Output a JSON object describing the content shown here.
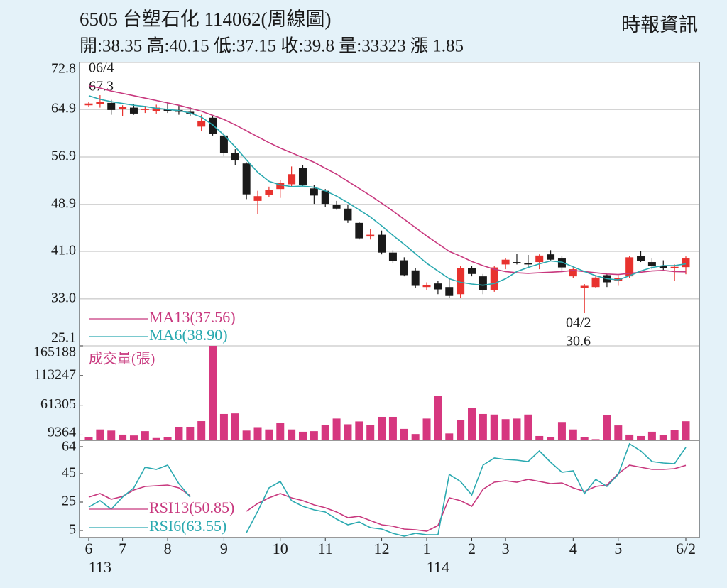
{
  "chart_data": [
    {
      "type": "candlestick",
      "title": "6505  台塑石化 114062(周線圖)",
      "subtitle": "開:38.35 高:40.15 低:37.15 收:39.8 量:33323 漲 1.85",
      "source": "時報資訊",
      "open": [
        65.6,
        65.8,
        66.0,
        65.0,
        65.2,
        64.8,
        64.6,
        65.0,
        64.8,
        64.5,
        62.0,
        63.5,
        60.5,
        57.5,
        55.8,
        49.5,
        50.5,
        51.5,
        52.3,
        55.0,
        51.6,
        51.2,
        48.8,
        48.2,
        45.8,
        43.5,
        43.8,
        40.8,
        39.5,
        37.8,
        35.0,
        35.6,
        35.0,
        33.8,
        38.2,
        36.8,
        34.5,
        38.8,
        39.2,
        39.0,
        39.2,
        40.5,
        39.8,
        36.8,
        34.8,
        35.0,
        37.0,
        36.0,
        36.8,
        40.2,
        39.2,
        38.6,
        38.3,
        38.35
      ],
      "high": [
        66.2,
        67.3,
        66.5,
        65.6,
        65.8,
        65.5,
        65.7,
        66.0,
        65.5,
        65.3,
        64.0,
        63.8,
        61.0,
        58.2,
        56.0,
        51.2,
        51.9,
        53.0,
        55.3,
        55.5,
        52.2,
        51.5,
        49.5,
        48.9,
        46.0,
        44.8,
        44.5,
        41.2,
        40.0,
        38.2,
        35.8,
        36.0,
        36.5,
        38.5,
        38.5,
        37.2,
        38.5,
        39.8,
        40.6,
        40.4,
        40.5,
        41.2,
        40.2,
        38.3,
        35.5,
        37.0,
        37.2,
        37.0,
        40.2,
        41.0,
        39.8,
        39.5,
        38.8,
        40.15
      ],
      "low": [
        65.3,
        65.2,
        64.0,
        63.8,
        64.0,
        64.3,
        64.2,
        64.3,
        64.0,
        63.8,
        61.2,
        60.5,
        57.0,
        55.5,
        49.8,
        47.3,
        50.1,
        50.0,
        51.8,
        52.0,
        49.0,
        48.5,
        48.0,
        45.8,
        43.0,
        43.0,
        40.5,
        39.0,
        36.8,
        34.8,
        34.5,
        33.8,
        33.2,
        33.2,
        36.8,
        33.8,
        34.2,
        38.0,
        38.8,
        38.2,
        38.0,
        39.5,
        37.8,
        36.5,
        30.6,
        34.8,
        35.0,
        35.2,
        36.5,
        39.2,
        38.0,
        37.8,
        36.0,
        37.15
      ],
      "close": [
        65.9,
        66.2,
        64.8,
        65.3,
        64.2,
        65.0,
        65.2,
        64.6,
        64.5,
        64.2,
        63.0,
        60.8,
        57.5,
        56.3,
        50.6,
        50.3,
        51.4,
        52.5,
        54.0,
        52.2,
        50.4,
        49.0,
        48.2,
        46.2,
        43.2,
        43.8,
        40.8,
        39.4,
        37.0,
        35.2,
        35.3,
        34.6,
        33.5,
        38.2,
        37.2,
        34.5,
        38.3,
        39.6,
        39.0,
        38.8,
        40.3,
        39.6,
        38.3,
        38.0,
        35.2,
        36.6,
        35.8,
        36.5,
        40.0,
        39.4,
        38.6,
        38.2,
        38.4,
        39.8
      ],
      "up_color": "#e8322e",
      "down_color": "#1a1a1a",
      "series": [
        {
          "name": "MA13(37.56)",
          "color": "#c8387e",
          "values": [
            68.9,
            68.5,
            68.0,
            67.6,
            67.2,
            66.8,
            66.4,
            66.0,
            65.6,
            65.1,
            64.6,
            63.9,
            63.2,
            62.3,
            61.3,
            60.3,
            59.3,
            58.4,
            57.6,
            56.8,
            56.0,
            55.0,
            54.0,
            52.8,
            51.6,
            50.4,
            49.1,
            47.8,
            46.4,
            45.0,
            43.6,
            42.3,
            41.0,
            40.2,
            39.3,
            38.6,
            38.0,
            37.6,
            37.4,
            37.3,
            37.4,
            37.5,
            37.6,
            37.8,
            37.6,
            37.4,
            37.2,
            37.1,
            37.3,
            37.5,
            37.7,
            37.8,
            37.6,
            37.56
          ]
        },
        {
          "name": "MA6(38.90)",
          "color": "#2aa9b0",
          "values": [
            67.2,
            66.6,
            66.2,
            65.9,
            65.6,
            65.4,
            65.1,
            64.9,
            64.7,
            64.3,
            63.6,
            62.3,
            60.6,
            58.6,
            56.4,
            54.3,
            52.8,
            52.2,
            51.9,
            52.0,
            51.8,
            51.2,
            50.3,
            49.2,
            48.0,
            46.8,
            45.3,
            43.7,
            42.2,
            40.6,
            39.0,
            37.7,
            36.4,
            35.8,
            35.5,
            35.3,
            35.6,
            36.4,
            37.6,
            38.3,
            38.9,
            39.4,
            39.2,
            38.4,
            37.6,
            36.9,
            36.4,
            36.2,
            36.9,
            37.7,
            38.3,
            38.6,
            38.6,
            38.9
          ]
        }
      ],
      "annotations": [
        {
          "date": "06/4",
          "value": 67.3
        },
        {
          "date": "04/2",
          "value": 30.6
        }
      ],
      "ylim": [
        25.1,
        72.8
      ],
      "yticks": [
        72.8,
        64.9,
        56.9,
        48.9,
        {
          "value": 41,
          "label": "41.0"
        },
        {
          "value": 33,
          "label": "33.0"
        },
        25.1
      ],
      "grid": true
    },
    {
      "type": "bar",
      "label": "成交量(張)",
      "color": "#d6377f",
      "values": [
        5000,
        19000,
        17000,
        10000,
        8500,
        16000,
        4000,
        6000,
        23600,
        23600,
        33500,
        165188,
        46000,
        47000,
        17000,
        23000,
        19000,
        30000,
        19000,
        15000,
        16000,
        27000,
        38000,
        28000,
        33000,
        27000,
        41000,
        41000,
        20000,
        11000,
        38000,
        77000,
        12000,
        36000,
        57000,
        46000,
        45000,
        37000,
        38000,
        45000,
        7500,
        5000,
        32000,
        19000,
        6000,
        2000,
        44000,
        26000,
        10000,
        7500,
        15000,
        9000,
        18000,
        33323
      ],
      "ylim": [
        0,
        165188
      ],
      "yticks": [
        165188,
        113247,
        61305,
        9364
      ]
    },
    {
      "type": "line",
      "categories": [
        "6",
        null,
        null,
        "7",
        null,
        null,
        null,
        "8",
        null,
        null,
        null,
        null,
        "9",
        null,
        null,
        null,
        null,
        "10",
        null,
        null,
        null,
        "11",
        null,
        null,
        null,
        null,
        "12",
        null,
        null,
        null,
        "1",
        null,
        null,
        null,
        "2",
        null,
        null,
        "3",
        null,
        null,
        null,
        null,
        null,
        "4",
        null,
        null,
        null,
        "5",
        null,
        null,
        null,
        null,
        null,
        "6/2"
      ],
      "year_labels": [
        null,
        "113",
        null,
        null,
        null,
        null,
        null,
        null,
        null,
        null,
        null,
        null,
        null,
        null,
        null,
        null,
        null,
        null,
        null,
        null,
        null,
        null,
        null,
        null,
        null,
        null,
        null,
        null,
        null,
        null,
        null,
        "114",
        null,
        null,
        null,
        null,
        null,
        null,
        null,
        null,
        null,
        null,
        null,
        null,
        null,
        null,
        null,
        null,
        null,
        null,
        null,
        null,
        null,
        null
      ],
      "series": [
        {
          "name": "RSI13(50.85)",
          "color": "#c8387e",
          "values": [
            28.5,
            31,
            27,
            29,
            33.5,
            36,
            36.5,
            37,
            35,
            29.5,
            null,
            null,
            null,
            null,
            18.5,
            24,
            28,
            31,
            28,
            26,
            23,
            21,
            18,
            14,
            15,
            12,
            9,
            8,
            6,
            5.5,
            4.5,
            8.5,
            28,
            26,
            22,
            34,
            39,
            40,
            39,
            41,
            39.5,
            38,
            38.5,
            35,
            32.5,
            36,
            37,
            45,
            51,
            49.5,
            48,
            48,
            48.5,
            50.85
          ]
        },
        {
          "name": "RSI6(63.55)",
          "color": "#2aa9b0",
          "values": [
            21.5,
            26,
            20,
            28.5,
            35,
            49.5,
            48,
            51,
            38,
            28.5,
            null,
            null,
            null,
            null,
            3.5,
            18.5,
            35,
            39.5,
            26,
            22,
            19.5,
            18,
            13,
            9,
            11,
            7,
            6,
            3,
            1,
            3,
            2,
            2,
            44.5,
            39.5,
            30,
            51,
            56,
            55,
            54.5,
            53.5,
            61,
            53,
            46,
            47,
            31,
            41,
            36,
            44.5,
            66,
            61,
            53.5,
            52.5,
            52,
            63.55
          ]
        }
      ],
      "ylim": [
        0,
        68.5
      ],
      "yticks": [
        64,
        45,
        25,
        5
      ]
    }
  ]
}
